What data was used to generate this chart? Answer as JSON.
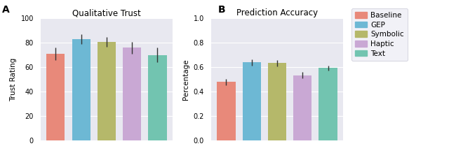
{
  "panel_A": {
    "title": "Qualitative Trust",
    "ylabel": "Trust Rating",
    "ylim": [
      0,
      100
    ],
    "yticks": [
      0,
      20,
      40,
      60,
      80,
      100
    ],
    "values": [
      71,
      83,
      81,
      76,
      70
    ],
    "errors": [
      5,
      4,
      4,
      5,
      6
    ]
  },
  "panel_B": {
    "title": "Prediction Accuracy",
    "ylabel": "Percentage",
    "ylim": [
      0.0,
      1.0
    ],
    "yticks": [
      0.0,
      0.2,
      0.4,
      0.6,
      0.8,
      1.0
    ],
    "values": [
      0.48,
      0.64,
      0.635,
      0.535,
      0.595
    ],
    "errors": [
      0.025,
      0.025,
      0.025,
      0.025,
      0.02
    ]
  },
  "categories": [
    "Baseline",
    "GEP",
    "Symbolic",
    "Haptic",
    "Text"
  ],
  "colors": [
    "#E8897A",
    "#6DB8D4",
    "#B5B86A",
    "#C9A8D4",
    "#72C4B0"
  ],
  "legend_labels": [
    "Baseline",
    "GEP",
    "Symbolic",
    "Haptic",
    "Text"
  ],
  "background_color": "#E8E8F0",
  "bar_width": 0.72,
  "label_A": "A",
  "label_B": "B",
  "fig_width": 6.4,
  "fig_height": 2.19
}
